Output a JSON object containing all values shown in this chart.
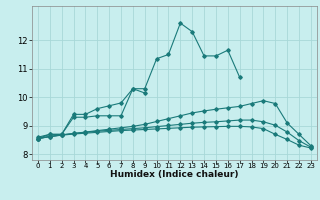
{
  "xlabel": "Humidex (Indice chaleur)",
  "bg_color": "#c8eeee",
  "grid_color": "#a8d8d8",
  "line_color": "#1a7a7a",
  "xlim": [
    -0.5,
    23.5
  ],
  "ylim": [
    7.8,
    13.2
  ],
  "yticks": [
    8,
    9,
    10,
    11,
    12
  ],
  "xticks": [
    0,
    1,
    2,
    3,
    4,
    5,
    6,
    7,
    8,
    9,
    10,
    11,
    12,
    13,
    14,
    15,
    16,
    17,
    18,
    19,
    20,
    21,
    22,
    23
  ],
  "series": [
    {
      "x": [
        0,
        1,
        2,
        3,
        4,
        5,
        6,
        7,
        8,
        9,
        10,
        11,
        12,
        13,
        14,
        15,
        16,
        17
      ],
      "y": [
        8.6,
        8.7,
        8.7,
        9.4,
        9.4,
        9.6,
        9.7,
        9.8,
        10.3,
        10.3,
        11.35,
        11.5,
        12.6,
        12.3,
        11.45,
        11.45,
        11.65,
        10.7
      ]
    },
    {
      "x": [
        0,
        1,
        2,
        3,
        4,
        5,
        6,
        7,
        8,
        9
      ],
      "y": [
        8.55,
        8.7,
        8.7,
        9.3,
        9.3,
        9.35,
        9.35,
        9.35,
        10.3,
        10.15
      ]
    },
    {
      "x": [
        0,
        1,
        2,
        3,
        4,
        5,
        6,
        7,
        8,
        9,
        10,
        11,
        12,
        13,
        14,
        15,
        16,
        17,
        18,
        19,
        20,
        21,
        22,
        23
      ],
      "y": [
        8.55,
        8.62,
        8.68,
        8.73,
        8.78,
        8.83,
        8.88,
        8.93,
        8.98,
        9.05,
        9.15,
        9.25,
        9.35,
        9.45,
        9.52,
        9.58,
        9.63,
        9.68,
        9.78,
        9.88,
        9.78,
        9.1,
        8.7,
        8.3
      ]
    },
    {
      "x": [
        0,
        1,
        2,
        3,
        4,
        5,
        6,
        7,
        8,
        9,
        10,
        11,
        12,
        13,
        14,
        15,
        16,
        17,
        18,
        19,
        20,
        21,
        22,
        23
      ],
      "y": [
        8.55,
        8.63,
        8.68,
        8.73,
        8.77,
        8.81,
        8.84,
        8.87,
        8.9,
        8.93,
        8.97,
        9.01,
        9.05,
        9.09,
        9.12,
        9.14,
        9.17,
        9.2,
        9.2,
        9.14,
        9.02,
        8.78,
        8.48,
        8.25
      ]
    },
    {
      "x": [
        0,
        1,
        2,
        3,
        4,
        5,
        6,
        7,
        8,
        9,
        10,
        11,
        12,
        13,
        14,
        15,
        16,
        17,
        18,
        19,
        20,
        21,
        22,
        23
      ],
      "y": [
        8.55,
        8.62,
        8.67,
        8.71,
        8.74,
        8.77,
        8.8,
        8.83,
        8.85,
        8.87,
        8.89,
        8.91,
        8.93,
        8.95,
        8.96,
        8.97,
        8.98,
        8.98,
        8.96,
        8.9,
        8.7,
        8.52,
        8.32,
        8.22
      ]
    }
  ]
}
